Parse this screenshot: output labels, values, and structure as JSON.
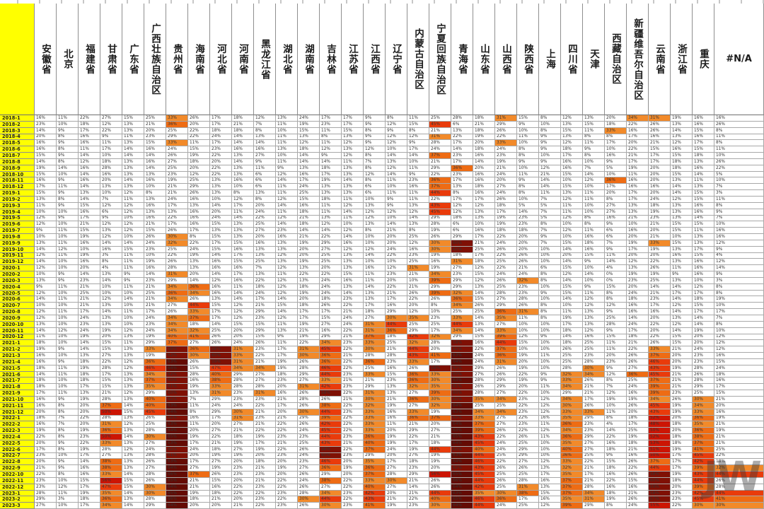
{
  "watermark": "JW",
  "grid_color": "#a8a8a8",
  "label_bg": "#ffff00",
  "heatmap_scale": [
    {
      "min": 63,
      "color": "#640b03"
    },
    {
      "min": 57,
      "color": "#7f1004"
    },
    {
      "min": 48,
      "color": "#cc1503"
    },
    {
      "min": 42,
      "color": "#e93b0b"
    },
    {
      "min": 36,
      "color": "#ee6c14"
    },
    {
      "min": 30,
      "color": "#f28a2a"
    }
  ],
  "chart_data": {
    "type": "heatmap",
    "title": "",
    "value_suffix": "%",
    "legend_position": "none",
    "grid": true,
    "columns": [
      "安徽省",
      "北京",
      "福建省",
      "甘肃省",
      "广东省",
      "广西壮族自治区",
      "贵州省",
      "海南省",
      "河北省",
      "河南省",
      "黑龙江省",
      "湖北省",
      "湖南省",
      "吉林省",
      "江苏省",
      "江西省",
      "辽宁省",
      "内蒙古自治区",
      "宁夏回族自治区",
      "青海省",
      "山东省",
      "山西省",
      "陕西省",
      "上海",
      "四川省",
      "天津",
      "西藏自治区",
      "新疆维吾尔自治区",
      "云南省",
      "浙江省",
      "重庆",
      "#N/A"
    ],
    "rows": [
      {
        "label": "2018-1",
        "values": "16,11,22,27,15,25,33,26,17,18,12,13,24,17,17,9,8,11,25,28,18,31,15,8,12,13,20,34,31,19,16,16"
      },
      {
        "label": "2018-2",
        "values": "23,10,18,12,13,21,36,20,17,21,7,11,19,23,17,9,12,15,45,6,21,29,9,10,13,15,18,22,26,13,16,26"
      },
      {
        "label": "2018-3",
        "values": "14,9,17,22,13,20,25,22,18,18,8,10,15,11,15,8,9,8,21,13,18,26,10,8,15,11,33,16,26,14,15,8"
      },
      {
        "label": "2018-4",
        "values": "20,8,16,9,11,23,29,22,24,14,13,11,13,8,13,9,12,12,31,22,19,22,11,9,13,8,8,17,16,13,16,11"
      },
      {
        "label": "2018-5",
        "values": "16,9,16,11,13,15,33,11,17,14,14,11,12,11,12,9,12,9,28,17,20,33,10,9,12,11,17,20,21,12,17,8"
      },
      {
        "label": "2018-6",
        "values": "16,8,11,17,14,16,24,15,23,16,16,13,18,12,13,12,10,17,24,14,18,24,8,9,18,9,10,22,15,16,15,11"
      },
      {
        "label": "2018-7",
        "values": "15,9,14,10,14,14,26,19,22,13,27,10,14,9,12,8,14,14,37,23,16,23,8,10,17,8,16,21,17,15,18,10"
      },
      {
        "label": "2018-8",
        "values": "14,8,12,18,13,16,27,18,20,14,9,11,14,14,11,7,13,10,21,17,14,19,9,9,16,10,9,17,17,18,13,26"
      },
      {
        "label": "2018-9",
        "values": "19,14,16,28,13,14,25,20,22,13,11,9,13,18,13,8,12,11,29,36,20,21,10,12,16,7,5,19,20,18,16,22"
      },
      {
        "label": "2018-10",
        "values": "15,10,14,16,13,13,23,12,22,13,6,12,16,17,13,12,14,9,22,23,16,24,11,21,15,14,10,11,20,15,14,5"
      },
      {
        "label": "2018-11",
        "values": "16,9,16,20,14,16,19,25,13,16,6,14,17,19,14,8,11,23,36,17,16,20,9,14,10,12,36,16,20,13,11,10"
      },
      {
        "label": "2018-12",
        "values": "17,11,14,13,13,10,21,29,13,10,6,11,24,13,13,6,10,16,37,13,18,27,8,14,15,10,17,16,16,14,13,7"
      },
      {
        "label": "2019-1",
        "values": "15,9,13,10,12,8,21,26,13,8,13,11,25,13,13,6,11,11,44,8,16,24,8,11,13,11,20,17,20,14,15,3"
      },
      {
        "label": "2019-2",
        "values": "13,8,14,7,11,13,24,16,10,12,8,12,15,18,11,10,9,11,22,17,17,26,10,7,12,11,8,17,24,12,15,11"
      },
      {
        "label": "2019-3",
        "values": "11,9,15,12,12,16,17,13,14,17,20,14,16,11,12,13,9,13,43,12,12,18,5,5,11,10,27,13,18,13,16,8"
      },
      {
        "label": "2019-4",
        "values": "10,10,16,6,12,13,13,16,20,11,24,11,18,11,14,12,12,12,45,12,13,17,14,7,11,10,27,13,19,13,16,9"
      },
      {
        "label": "2019-5",
        "values": "12,9,17,9,10,16,22,16,24,14,22,12,21,13,11,12,10,14,29,18,13,19,23,5,12,8,16,21,23,13,14,7"
      },
      {
        "label": "2019-6",
        "values": "12,10,21,12,12,21,17,16,15,13,25,14,18,12,10,13,14,13,28,6,10,19,23,8,10,8,9,10,21,15,15,10"
      },
      {
        "label": "2019-7",
        "values": "9,11,15,13,12,15,26,17,13,13,27,23,14,14,12,8,21,8,19,6,16,18,18,7,12,11,6,16,20,15,11,16"
      },
      {
        "label": "2019-8",
        "values": "10,10,19,12,10,26,30,8,15,13,20,16,21,22,14,10,20,25,26,29,17,22,20,9,10,16,6,20,21,10,13,16"
      },
      {
        "label": "2019-9",
        "values": "13,11,16,14,14,24,32,22,17,15,16,13,19,29,16,10,20,12,30,60,21,24,20,7,15,18,7,19,33,15,13,12"
      },
      {
        "label": "2019-10",
        "values": "14,12,10,16,15,23,25,24,15,16,13,13,20,27,12,12,24,16,30,62,25,26,20,10,14,16,9,17,19,13,17,9"
      },
      {
        "label": "2019-11",
        "values": "12,11,19,3,11,10,22,19,14,17,13,12,20,25,13,14,22,23,19,18,17,22,26,10,20,15,11,20,20,16,15,4"
      },
      {
        "label": "2019-12",
        "values": "14,10,16,8,11,19,26,13,16,15,25,13,19,25,13,10,10,25,16,31,18,25,26,10,14,9,14,12,22,13,16,12"
      },
      {
        "label": "2020-1",
        "values": "12,10,20,4,11,16,28,13,16,16,7,12,13,20,13,16,12,31,19,27,12,22,21,6,15,10,4,13,26,11,16,14"
      },
      {
        "label": "2020-2",
        "values": "10,9,14,13,9,14,31,20,14,17,13,11,22,22,15,11,23,21,34,23,15,24,24,8,12,14,0,19,19,9,16,9"
      },
      {
        "label": "2020-3",
        "values": "13,9,23,14,9,23,29,14,12,16,22,12,13,24,16,11,20,10,39,29,12,26,32,8,14,10,0,23,25,13,10,3"
      },
      {
        "label": "2020-4",
        "values": "9,11,21,10,11,21,34,36,16,11,18,12,18,24,13,14,22,21,29,29,13,25,23,10,15,9,15,20,14,14,12,8"
      },
      {
        "label": "2020-5",
        "values": "12,10,25,10,10,25,36,34,16,14,24,12,19,24,14,13,21,26,39,32,14,28,23,9,15,11,8,24,21,17,17,8"
      },
      {
        "label": "2020-6",
        "values": "14,11,21,12,14,21,34,26,13,14,17,14,20,18,23,13,17,22,26,36,15,27,28,10,14,12,8,18,23,14,18,19"
      },
      {
        "label": "2020-7",
        "values": "10,10,21,13,10,21,27,44,15,12,21,15,18,26,22,17,16,20,8,34,26,29,26,8,10,12,12,16,17,12,15,10"
      },
      {
        "label": "2020-8",
        "values": "12,11,17,14,11,17,26,33,17,12,29,14,17,17,21,18,29,12,10,25,25,36,31,8,11,13,9,16,16,14,17,17"
      },
      {
        "label": "2020-9",
        "values": "12,10,24,13,10,24,34,37,17,12,23,12,17,15,24,27,30,35,23,33,14,35,11,8,19,13,25,14,20,13,14,7"
      },
      {
        "label": "2020-10",
        "values": "13,10,23,13,10,23,34,18,14,15,15,11,19,27,24,31,44,25,25,44,13,27,10,10,17,13,28,24,22,12,14,8"
      },
      {
        "label": "2020-11",
        "values": "14,12,24,19,12,24,34,32,25,20,29,13,21,16,22,31,36,29,17,34,14,33,10,10,18,12,9,17,20,14,19,10"
      },
      {
        "label": "2020-12",
        "values": "11,10,19,20,13,19,40,41,26,20,15,9,19,29,21,37,18,42,32,29,15,39,12,9,14,16,15,18,22,15,20,12"
      },
      {
        "label": "2021-1",
        "values": "18,10,14,15,11,29,37,27,26,24,26,11,22,34,23,33,25,32,28,58,16,44,15,10,18,25,11,21,26,15,20,12"
      },
      {
        "label": "2021-2",
        "values": "19,9,14,15,13,33,58,36,58,31,23,17,31,45,22,30,21,44,20,62,22,37,10,10,26,25,11,22,33,21,24,12"
      },
      {
        "label": "2021-3",
        "values": "16,10,13,27,13,19,62,30,60,33,22,17,30,36,21,28,28,43,41,63,24,36,19,11,25,23,20,26,37,20,23,16"
      },
      {
        "label": "2021-4",
        "values": "16,9,18,22,12,36,63,26,59,31,21,19,26,36,22,36,23,33,17,64,24,31,20,10,25,28,23,26,46,20,23,15"
      },
      {
        "label": "2021-5",
        "values": "18,11,19,28,12,46,64,15,47,34,34,19,28,46,22,25,16,26,58,62,29,26,19,10,28,30,9,27,43,19,28,24"
      },
      {
        "label": "2021-6",
        "values": "14,11,18,17,13,34,62,28,40,29,27,18,29,44,23,33,15,36,33,60,27,26,22,9,32,34,12,36,45,21,26,18"
      },
      {
        "label": "2021-7",
        "values": "18,10,18,15,13,37,60,16,38,28,27,23,27,33,21,21,23,36,30,63,28,29,19,9,33,26,8,25,37,21,28,16"
      },
      {
        "label": "2021-8",
        "values": "18,10,17,15,13,35,61,19,33,28,28,20,31,42,23,29,13,32,35,61,26,29,20,11,34,21,7,24,39,21,29,17"
      },
      {
        "label": "2021-9",
        "values": "17,11,13,21,12,29,60,13,31,23,31,16,26,58,22,31,13,27,39,60,28,27,22,10,29,21,12,16,39,23,25,15"
      },
      {
        "label": "2021-10",
        "values": "16,9,19,28,13,40,62,7,29,23,23,21,28,26,21,30,21,36,30,62,35,34,23,12,34,17,19,19,34,26,30,21"
      },
      {
        "label": "2021-11",
        "values": "16,8,20,37,14,40,63,11,24,24,22,17,26,38,22,32,19,27,32,64,25,25,22,12,30,26,10,26,45,19,34,20"
      },
      {
        "label": "2021-12",
        "values": "20,8,20,50,15,45,64,8,29,30,21,20,30,44,23,33,16,33,19,63,34,34,23,12,33,33,11,20,43,19,33,16"
      },
      {
        "label": "2022-1",
        "values": "18,7,22,28,13,26,62,16,17,31,23,21,29,39,22,33,16,36,37,62,33,27,22,16,35,29,8,18,52,20,36,19"
      },
      {
        "label": "2022-2",
        "values": "16,7,20,31,12,25,63,11,20,27,21,22,26,42,22,33,11,21,20,64,37,27,23,11,36,23,4,17,48,18,35,21"
      },
      {
        "label": "2022-3",
        "values": "19,8,19,36,13,28,64,20,27,21,22,22,24,45,22,33,20,29,27,63,39,26,22,12,34,23,14,25,50,20,36,19"
      },
      {
        "label": "2022-4",
        "values": "22,8,23,50,14,30,65,19,22,18,19,23,23,44,23,36,19,22,21,65,43,22,26,11,36,29,22,19,52,18,38,21"
      },
      {
        "label": "2022-5",
        "values": "20,9,22,33,13,27,63,17,21,19,17,21,25,43,21,40,19,17,18,64,45,24,25,10,35,27,16,18,53,18,37,21"
      },
      {
        "label": "2022-6",
        "values": "17,8,19,28,12,24,62,24,18,27,19,22,26,58,22,37,24,19,44,62,40,24,29,10,40,27,18,21,51,19,41,25"
      },
      {
        "label": "2022-7",
        "values": "23,10,17,27,13,28,61,20,19,19,20,23,24,60,23,29,20,27,19,63,44,25,29,10,36,25,9,16,50,17,45,22"
      },
      {
        "label": "2022-8",
        "values": "20,9,14,38,13,26,63,17,27,20,18,20,23,46,20,35,17,18,19,64,46,22,27,12,33,22,15,26,37,17,42,18"
      },
      {
        "label": "2022-9",
        "values": "21,9,16,38,13,27,64,27,19,23,21,19,27,36,19,36,27,23,20,62,43,26,26,13,32,21,18,22,44,17,39,32"
      },
      {
        "label": "2022-10",
        "values": "22,8,16,33,14,28,66,37,26,23,23,20,26,29,20,37,28,29,56,65,45,25,25,17,35,17,16,26,58,19,43,44"
      },
      {
        "label": "2022-11",
        "values": "23,10,15,56,15,26,65,21,15,20,21,22,24,38,22,33,30,21,26,66,44,26,28,16,37,21,22,15,60,18,44,26"
      },
      {
        "label": "2022-12",
        "values": "23,12,17,47,15,30,64,21,16,22,23,22,26,27,22,40,27,14,26,64,42,25,31,13,37,28,16,16,59,20,39,28"
      },
      {
        "label": "2023-1",
        "values": "28,11,19,35,14,30,65,19,18,22,22,23,28,34,23,42,20,21,44,63,35,30,38,15,37,34,18,21,58,23,42,44"
      },
      {
        "label": "2023-2",
        "values": "29,3,18,36,13,28,66,18,21,20,23,22,30,44,22,43,21,22,40,65,46,36,17,16,35,31,19,26,57,23,45,41"
      },
      {
        "label": "2023-3",
        "values": "27,10,17,34,14,29,64,20,20,21,22,23,26,30,23,41,19,23,30,64,44,24,25,12,39,29,8,24,55,22,30,30"
      }
    ]
  }
}
